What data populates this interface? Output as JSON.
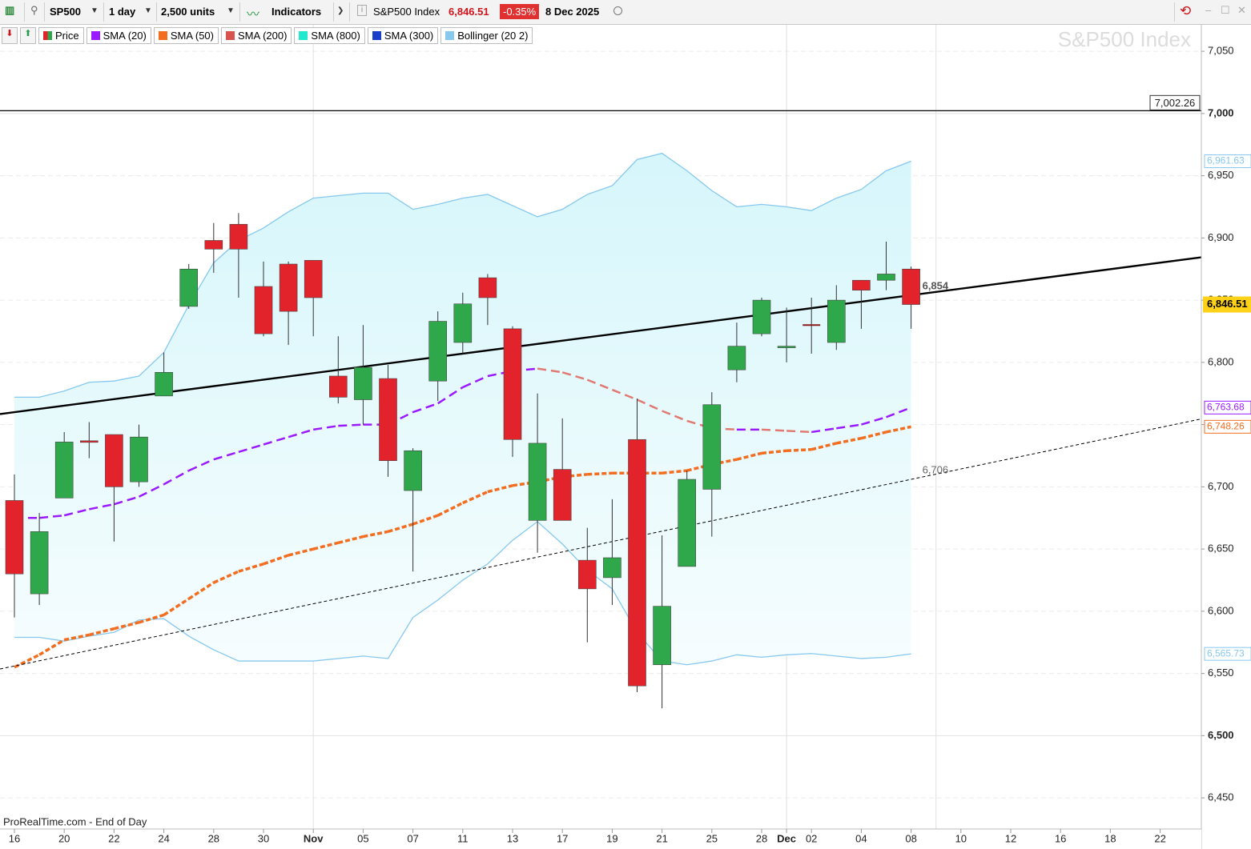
{
  "toolbar": {
    "symbol": "SP500",
    "timeframe": "1 day",
    "units": "2,500 units",
    "indicators": "Indicators",
    "instrument": "S&P500 Index",
    "price": "6,846.51",
    "change": "-0.35%",
    "date": "8 Dec 2025"
  },
  "chart_data": {
    "type": "candlestick",
    "watermark": "S&P500 Index",
    "source": "ProRealTime.com - End of Day",
    "categories": [
      "16",
      null,
      "20",
      null,
      "22",
      null,
      "24",
      null,
      "28",
      null,
      "30",
      null,
      "Nov",
      null,
      "05",
      null,
      "07",
      null,
      "11",
      null,
      "13",
      null,
      "17",
      null,
      "19",
      null,
      "21",
      null,
      "25",
      null,
      "28",
      "Dec",
      "02",
      null,
      "04",
      null,
      "08",
      null,
      "10",
      null,
      "12",
      null,
      "16",
      null,
      "18",
      null,
      "22"
    ],
    "open": [
      6689,
      6614,
      6691,
      6737,
      6742,
      6704,
      6773,
      6845,
      6898,
      6911,
      6861,
      6879,
      6882,
      6789,
      6770,
      6787,
      6697,
      6785,
      6816,
      6868,
      6827,
      6673,
      6714,
      6641,
      6627,
      6738,
      6557,
      6636,
      6698,
      6794,
      6823,
      6812,
      6830,
      6816,
      6866,
      6866,
      6875,
      null,
      null,
      null,
      null,
      null,
      null,
      null,
      null,
      null,
      null
    ],
    "high": [
      6710,
      6679,
      6744,
      6752,
      6742,
      6750,
      6808,
      6879,
      6912,
      6920,
      6881,
      6881,
      6882,
      6821,
      6830,
      6798,
      6731,
      6841,
      6856,
      6871,
      6829,
      6775,
      6755,
      6667,
      6690,
      6771,
      6661,
      6713,
      6776,
      6832,
      6852,
      6844,
      6852,
      6862,
      6866,
      6897,
      6877,
      null,
      null,
      null,
      null,
      null,
      null,
      null,
      null,
      null,
      null
    ],
    "low": [
      6595,
      6605,
      6691,
      6723,
      6656,
      6700,
      6773,
      6843,
      6872,
      6852,
      6821,
      6814,
      6821,
      6767,
      6750,
      6708,
      6632,
      6769,
      6807,
      6830,
      6724,
      6647,
      6673,
      6575,
      6605,
      6535,
      6522,
      6636,
      6660,
      6784,
      6821,
      6800,
      6807,
      6810,
      6827,
      6858,
      6827,
      null,
      null,
      null,
      null,
      null,
      null,
      null,
      null,
      null,
      null
    ],
    "close": [
      6630,
      6664,
      6736,
      6736,
      6700,
      6740,
      6792,
      6875,
      6891,
      6891,
      6823,
      6841,
      6852,
      6772,
      6796,
      6721,
      6729,
      6833,
      6847,
      6852,
      6738,
      6735,
      6673,
      6618,
      6643,
      6540,
      6604,
      6706,
      6766,
      6813,
      6850,
      6813,
      6830,
      6850,
      6858,
      6871,
      6846.51,
      null,
      null,
      null,
      null,
      null,
      null,
      null,
      null,
      null,
      null
    ],
    "price_label": "6,846.51",
    "series": [
      {
        "name": "Price",
        "color": "#2ea84a",
        "down_color": "#e3232c"
      },
      {
        "name": "SMA (20)",
        "color": "#9a1bff",
        "falling_color": "#e07a72",
        "values": [
          6675,
          6675,
          6677,
          6682,
          6686,
          6692,
          6702,
          6713,
          6722,
          6728,
          6734,
          6740,
          6746,
          6749,
          6750,
          6750,
          6760,
          6767,
          6780,
          6789,
          6793,
          6795,
          6792,
          6786,
          6778,
          6770,
          6761,
          6753,
          6747,
          6746,
          6746,
          6745,
          6744,
          6747,
          6750,
          6756,
          6763.68,
          null,
          null,
          null,
          null,
          null,
          null,
          null,
          null,
          null,
          null
        ],
        "last_label": "6,763.68"
      },
      {
        "name": "SMA (50)",
        "color": "#f26d1f",
        "values": [
          6555,
          6565,
          6577,
          6581,
          6586,
          6591,
          6597,
          6610,
          6623,
          6632,
          6638,
          6645,
          6650,
          6655,
          6660,
          6664,
          6670,
          6677,
          6687,
          6696,
          6701,
          6704,
          6708,
          6710,
          6711,
          6711,
          6711,
          6713,
          6718,
          6722,
          6727,
          6729,
          6730,
          6735,
          6739,
          6744,
          6748.26,
          null,
          null,
          null,
          null,
          null,
          null,
          null,
          null,
          null,
          null
        ],
        "last_label": "6,748.26"
      },
      {
        "name": "SMA (200)",
        "color": "#d9534f"
      },
      {
        "name": "SMA (800)",
        "color": "#22e8d0"
      },
      {
        "name": "SMA (300)",
        "color": "#1a3fc9"
      },
      {
        "name": "Bollinger (20 2)",
        "color": "#86c8ee",
        "upper": [
          6772,
          6772,
          6777,
          6784,
          6785,
          6789,
          6808,
          6846,
          6880,
          6898,
          6908,
          6921,
          6932,
          6934,
          6936,
          6936,
          6923,
          6927,
          6932,
          6935,
          6926,
          6917,
          6923,
          6935,
          6942,
          6963,
          6968,
          6954,
          6938,
          6925,
          6927,
          6925,
          6922,
          6932,
          6939,
          6954,
          6961.63,
          null,
          null,
          null,
          null,
          null,
          null,
          null,
          null,
          null,
          null
        ],
        "lower": [
          6579,
          6579,
          6576,
          6580,
          6583,
          6593,
          6594,
          6580,
          6569,
          6560,
          6560,
          6560,
          6560,
          6562,
          6564,
          6562,
          6595,
          6609,
          6625,
          6638,
          6657,
          6672,
          6654,
          6633,
          6618,
          6583,
          6560,
          6557,
          6560,
          6565,
          6563,
          6565,
          6566,
          6564,
          6562,
          6563,
          6565.73,
          null,
          null,
          null,
          null,
          null,
          null,
          null,
          null,
          null,
          null
        ],
        "upper_last_label": "6,961.63",
        "lower_last_label": "6,565.73"
      }
    ],
    "trendlines": [
      {
        "x": [
          0,
          36
        ],
        "values": [
          6760,
          6854
        ],
        "label": "6,854",
        "dashed": false
      },
      {
        "x": [
          0,
          36
        ],
        "values": [
          6556,
          6706
        ],
        "label": "6,706",
        "dashed": true
      }
    ],
    "hline": {
      "value": 7002.26,
      "label": "7,002.26"
    },
    "ylim": [
      6425,
      7070
    ],
    "yticks": [
      {
        "value": 6450,
        "label": "6,450"
      },
      {
        "value": 6500,
        "label": "6,500"
      },
      {
        "value": 6550,
        "label": "6,550"
      },
      {
        "value": 6600,
        "label": "6,600"
      },
      {
        "value": 6650,
        "label": "6,650"
      },
      {
        "value": 6700,
        "label": "6,700"
      },
      {
        "value": 6750,
        "label": "6,750"
      },
      {
        "value": 6800,
        "label": "6,800"
      },
      {
        "value": 6850,
        "label": "6,850"
      },
      {
        "value": 6900,
        "label": "6,900"
      },
      {
        "value": 6950,
        "label": "6,950"
      },
      {
        "value": 7000,
        "label": "7,000"
      },
      {
        "value": 7050,
        "label": "7,050"
      }
    ],
    "grid": true
  }
}
